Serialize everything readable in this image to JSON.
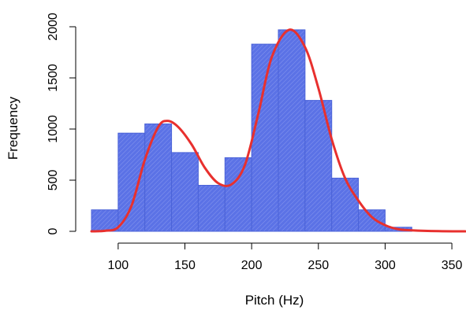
{
  "chart_data": {
    "type": "bar",
    "title": "",
    "xlabel": "Pitch (Hz)",
    "ylabel": "Frequency",
    "xlim": [
      80,
      360
    ],
    "ylim": [
      0,
      2000
    ],
    "x_ticks": [
      "100",
      "150",
      "200",
      "250",
      "300",
      "350"
    ],
    "y_ticks": [
      "0",
      "500",
      "1000",
      "1500",
      "2000"
    ],
    "bins": [
      {
        "x0": 80,
        "x1": 100,
        "value": 210
      },
      {
        "x0": 100,
        "x1": 120,
        "value": 960
      },
      {
        "x0": 120,
        "x1": 140,
        "value": 1050
      },
      {
        "x0": 140,
        "x1": 160,
        "value": 770
      },
      {
        "x0": 160,
        "x1": 180,
        "value": 450
      },
      {
        "x0": 180,
        "x1": 200,
        "value": 720
      },
      {
        "x0": 200,
        "x1": 220,
        "value": 1830
      },
      {
        "x0": 220,
        "x1": 240,
        "value": 1970
      },
      {
        "x0": 240,
        "x1": 260,
        "value": 1280
      },
      {
        "x0": 260,
        "x1": 280,
        "value": 520
      },
      {
        "x0": 280,
        "x1": 300,
        "value": 210
      },
      {
        "x0": 300,
        "x1": 320,
        "value": 40
      }
    ],
    "density_curve": {
      "x": [
        80,
        90,
        100,
        110,
        120,
        130,
        137,
        145,
        155,
        165,
        175,
        185,
        195,
        205,
        215,
        228,
        240,
        250,
        260,
        270,
        280,
        290,
        300,
        310,
        320,
        340,
        360
      ],
      "y": [
        0,
        5,
        40,
        250,
        700,
        1020,
        1080,
        1020,
        850,
        620,
        470,
        460,
        650,
        1150,
        1700,
        1970,
        1800,
        1400,
        900,
        520,
        300,
        140,
        60,
        20,
        10,
        2,
        0
      ]
    },
    "colors": {
      "bar_fill": "#5b72e6",
      "bar_border": "#4b63d8",
      "curve": "#e8302e"
    }
  }
}
